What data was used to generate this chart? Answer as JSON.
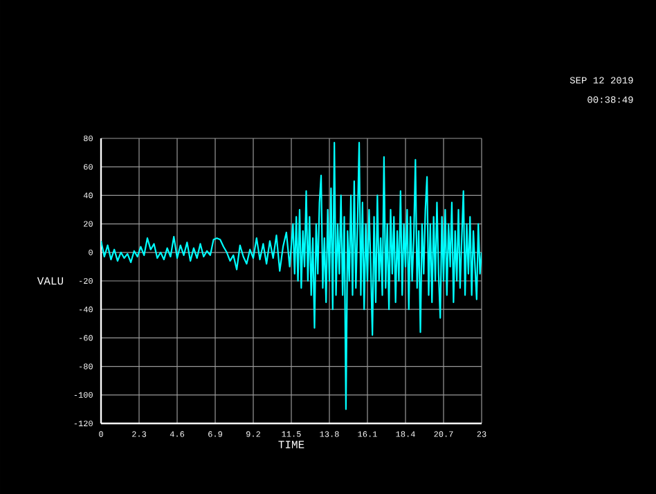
{
  "chart_data": {
    "type": "line",
    "xlabel": "TIME",
    "ylabel": "VALU",
    "annotations": [
      "SEP 12 2019",
      "00:38:49"
    ],
    "xlim": [
      0,
      23
    ],
    "ylim": [
      -120,
      80
    ],
    "xticks": [
      0,
      2.3,
      4.6,
      6.9,
      9.2,
      11.5,
      13.8,
      16.1,
      18.4,
      20.7,
      23
    ],
    "yticks": [
      -120,
      -100,
      -80,
      -60,
      -40,
      -20,
      0,
      20,
      40,
      60,
      80
    ],
    "grid": true,
    "series": [
      {
        "color": "#00ffff",
        "x": [
          0,
          0.2,
          0.4,
          0.6,
          0.8,
          1.0,
          1.2,
          1.4,
          1.6,
          1.8,
          2.0,
          2.2,
          2.4,
          2.6,
          2.8,
          3.0,
          3.2,
          3.4,
          3.6,
          3.8,
          4.0,
          4.2,
          4.4,
          4.6,
          4.8,
          5.0,
          5.2,
          5.4,
          5.6,
          5.8,
          6.0,
          6.2,
          6.4,
          6.6,
          6.8,
          7.0,
          7.2,
          7.4,
          7.6,
          7.8,
          8.0,
          8.2,
          8.4,
          8.6,
          8.8,
          9.0,
          9.2,
          9.4,
          9.6,
          9.8,
          10.0,
          10.2,
          10.4,
          10.6,
          10.8,
          11.0,
          11.2,
          11.4,
          11.6,
          11.7,
          11.8,
          11.9,
          12.0,
          12.1,
          12.2,
          12.3,
          12.4,
          12.5,
          12.6,
          12.7,
          12.8,
          12.9,
          13.0,
          13.1,
          13.2,
          13.3,
          13.4,
          13.5,
          13.6,
          13.7,
          13.8,
          13.9,
          14.0,
          14.1,
          14.2,
          14.3,
          14.4,
          14.5,
          14.6,
          14.7,
          14.8,
          14.9,
          15.0,
          15.1,
          15.2,
          15.3,
          15.4,
          15.5,
          15.6,
          15.7,
          15.8,
          15.9,
          16.0,
          16.1,
          16.2,
          16.3,
          16.4,
          16.5,
          16.6,
          16.7,
          16.8,
          16.9,
          17.0,
          17.1,
          17.2,
          17.3,
          17.4,
          17.5,
          17.6,
          17.7,
          17.8,
          17.9,
          18.0,
          18.1,
          18.2,
          18.3,
          18.4,
          18.5,
          18.6,
          18.7,
          18.8,
          18.9,
          19.0,
          19.1,
          19.2,
          19.3,
          19.4,
          19.5,
          19.6,
          19.7,
          19.8,
          19.9,
          20.0,
          20.1,
          20.2,
          20.3,
          20.4,
          20.5,
          20.6,
          20.7,
          20.8,
          20.9,
          21.0,
          21.1,
          21.2,
          21.3,
          21.4,
          21.5,
          21.6,
          21.7,
          21.8,
          21.9,
          22.0,
          22.1,
          22.2,
          22.3,
          22.4,
          22.5,
          22.6,
          22.7,
          22.8,
          22.9,
          23.0
        ],
        "values": [
          8,
          -3,
          5,
          -5,
          2,
          -6,
          0,
          -4,
          -1,
          -7,
          1,
          -3,
          4,
          -2,
          10,
          2,
          6,
          -4,
          0,
          -5,
          3,
          -3,
          11,
          -4,
          5,
          -2,
          7,
          -6,
          3,
          -4,
          6,
          -3,
          1,
          -2,
          9,
          10,
          9,
          4,
          0,
          -6,
          -2,
          -12,
          5,
          -3,
          -8,
          2,
          -4,
          10,
          -5,
          6,
          -8,
          8,
          -4,
          12,
          -13,
          4,
          14,
          -10,
          20,
          -15,
          25,
          -20,
          30,
          -25,
          15,
          -10,
          43,
          -20,
          25,
          -30,
          10,
          -53,
          20,
          -15,
          35,
          54,
          -25,
          10,
          -35,
          30,
          -20,
          45,
          -40,
          77,
          -30,
          20,
          -15,
          40,
          -30,
          25,
          -110,
          15,
          -20,
          40,
          -30,
          50,
          -25,
          20,
          77,
          -30,
          35,
          -40,
          20,
          -20,
          30,
          -10,
          -58,
          25,
          -35,
          40,
          -20,
          10,
          -30,
          67,
          -25,
          20,
          -40,
          30,
          -15,
          25,
          -35,
          15,
          -20,
          43,
          -30,
          20,
          -10,
          30,
          -40,
          25,
          -20,
          10,
          65,
          -25,
          15,
          -56,
          20,
          -15,
          30,
          53,
          -30,
          20,
          -35,
          25,
          -20,
          35,
          -15,
          -46,
          25,
          -20,
          30,
          -30,
          20,
          -10,
          35,
          -35,
          15,
          -20,
          30,
          -25,
          10,
          43,
          -30,
          20,
          -15,
          25,
          -30,
          15,
          -10,
          -33,
          20,
          -15,
          0
        ]
      }
    ]
  }
}
